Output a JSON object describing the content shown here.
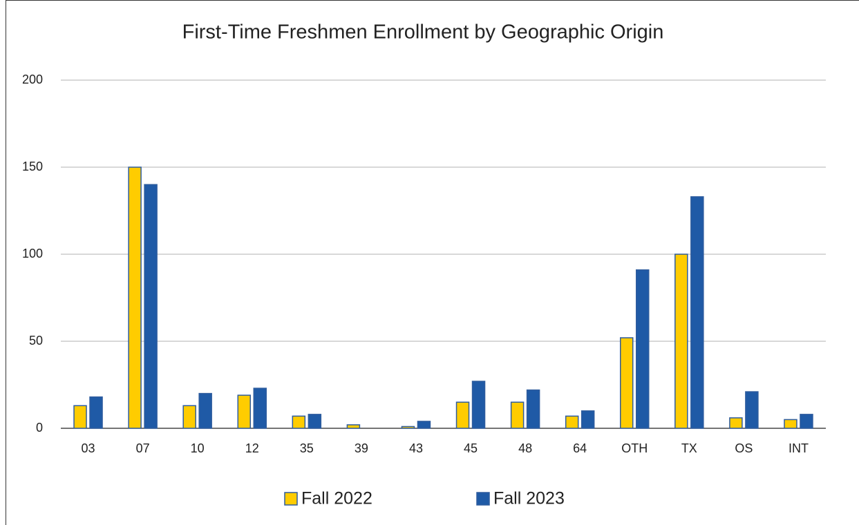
{
  "chart_data": {
    "type": "bar",
    "title": "First-Time Freshmen Enrollment by Geographic Origin",
    "categories": [
      "03",
      "07",
      "10",
      "12",
      "35",
      "39",
      "43",
      "45",
      "48",
      "64",
      "OTH",
      "TX",
      "OS",
      "INT"
    ],
    "series": [
      {
        "name": "Fall 2022",
        "color": "#ffcc00",
        "values": [
          13,
          150,
          13,
          19,
          7,
          2,
          1,
          15,
          15,
          7,
          52,
          100,
          6,
          5
        ]
      },
      {
        "name": "Fall 2023",
        "color": "#1f5aa6",
        "values": [
          18,
          140,
          20,
          23,
          8,
          0,
          4,
          27,
          22,
          10,
          91,
          133,
          21,
          8
        ]
      }
    ],
    "ylim": [
      0,
      200
    ],
    "yticks": [
      0,
      50,
      100,
      150,
      200
    ],
    "grid": true,
    "legend": "bottom"
  }
}
